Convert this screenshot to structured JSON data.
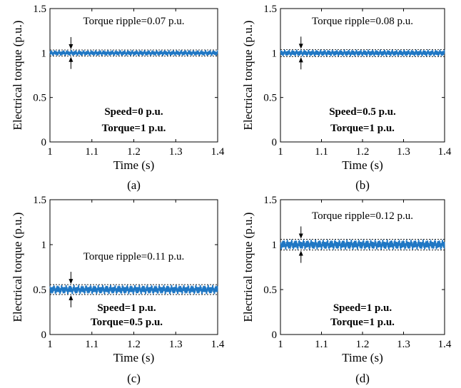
{
  "chart_data": [
    {
      "type": "line",
      "panel": "(a)",
      "caption": "(a)",
      "xlabel": "Time (s)",
      "ylabel": "Electrical torque (p.u.)",
      "xlim": [
        1,
        1.4
      ],
      "ylim": [
        0,
        1.5
      ],
      "xticks": [
        "1",
        "1.1",
        "1.2",
        "1.3",
        "1.4"
      ],
      "yticks": [
        "0",
        "0.5",
        "1",
        "1.5"
      ],
      "series_color": "#1f77c4",
      "mean_torque": 1.0,
      "ripple": 0.07,
      "band": [
        0.965,
        1.035
      ],
      "annotation": "Torque ripple=0.07 p.u.",
      "conditions": [
        "Speed=0 p.u.",
        "Torque=1 p.u."
      ],
      "grid": false
    },
    {
      "type": "line",
      "panel": "(b)",
      "caption": "(b)",
      "xlabel": "Time (s)",
      "ylabel": "Electrical torque (p.u.)",
      "xlim": [
        1,
        1.4
      ],
      "ylim": [
        0,
        1.5
      ],
      "xticks": [
        "1",
        "1.1",
        "1.2",
        "1.3",
        "1.4"
      ],
      "yticks": [
        "0",
        "0.5",
        "1",
        "1.5"
      ],
      "series_color": "#1f77c4",
      "mean_torque": 1.0,
      "ripple": 0.08,
      "band": [
        0.96,
        1.04
      ],
      "annotation": "Torque ripple=0.08 p.u.",
      "conditions": [
        "Speed=0.5 p.u.",
        "Torque=1 p.u."
      ],
      "grid": false
    },
    {
      "type": "line",
      "panel": "(c)",
      "caption": "(c)",
      "xlabel": "Time (s)",
      "ylabel": "Electrical torque (p.u.)",
      "xlim": [
        1,
        1.4
      ],
      "ylim": [
        0,
        1.5
      ],
      "xticks": [
        "1",
        "1.1",
        "1.2",
        "1.3",
        "1.4"
      ],
      "yticks": [
        "0",
        "0.5",
        "1",
        "1.5"
      ],
      "series_color": "#1f77c4",
      "mean_torque": 0.5,
      "ripple": 0.11,
      "band": [
        0.445,
        0.555
      ],
      "annotation": "Torque ripple=0.11 p.u.",
      "conditions": [
        "Speed=1 p.u.",
        "Torque=0.5 p.u."
      ],
      "grid": false
    },
    {
      "type": "line",
      "panel": "(d)",
      "caption": "(d)",
      "xlabel": "Time (s)",
      "ylabel": "Electrical torque (p.u.)",
      "xlim": [
        1,
        1.4
      ],
      "ylim": [
        0,
        1.5
      ],
      "xticks": [
        "1",
        "1.1",
        "1.2",
        "1.3",
        "1.4"
      ],
      "yticks": [
        "0",
        "0.5",
        "1",
        "1.5"
      ],
      "series_color": "#1f77c4",
      "mean_torque": 1.0,
      "ripple": 0.12,
      "band": [
        0.94,
        1.06
      ],
      "annotation": "Torque ripple=0.12 p.u.",
      "conditions": [
        "Speed=1 p.u.",
        "Torque=1 p.u."
      ],
      "grid": false
    }
  ]
}
